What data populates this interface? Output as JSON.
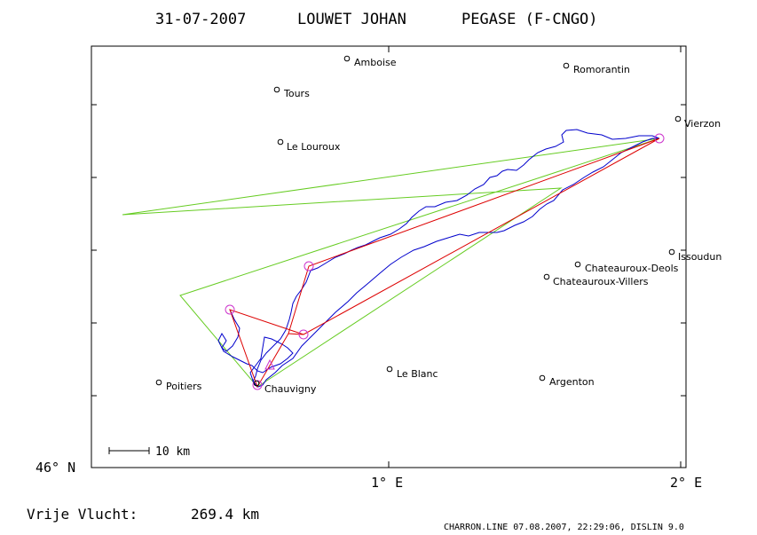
{
  "header": {
    "date": "31-07-2007",
    "pilot": "LOUWET JOHAN",
    "glider": "PEGASE (F-CNGO)"
  },
  "axes": {
    "lat_label": "46° N",
    "lon1_label": "1° E",
    "lon2_label": "2° E"
  },
  "scale_bar": {
    "label": "10 km"
  },
  "footer": {
    "distance_label": "Vrije Vlucht:",
    "distance_value": "269.4 km",
    "software": "CHARRON.LINE 07.08.2007, 22:29:06, DISLIN 9.0"
  },
  "colors": {
    "track": "#0000cc",
    "route": "#dd0000",
    "sector": "#66cc22",
    "turnpoint": "#cc33cc",
    "frame": "#000000"
  },
  "places": [
    {
      "name": "Amboise",
      "label": "Amboise"
    },
    {
      "name": "Romorantin",
      "label": "Romorantin"
    },
    {
      "name": "Tours",
      "label": "Tours"
    },
    {
      "name": "Vierzon",
      "label": "Vierzon"
    },
    {
      "name": "Le Louroux",
      "label": "Le Louroux"
    },
    {
      "name": "Issoudun",
      "label": "Issoudun"
    },
    {
      "name": "Chateauroux-Deols",
      "label": "Chateauroux-Deols"
    },
    {
      "name": "Chateauroux-Villers",
      "label": "Chateauroux-Villers"
    },
    {
      "name": "Le Blanc",
      "label": "Le Blanc"
    },
    {
      "name": "Poitiers",
      "label": "Poitiers"
    },
    {
      "name": "Argenton",
      "label": "Argenton"
    },
    {
      "name": "Chauvigny",
      "label": "Chauvigny"
    }
  ]
}
